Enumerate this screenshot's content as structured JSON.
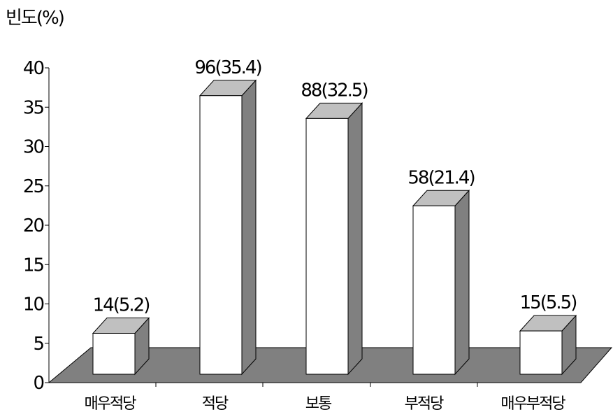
{
  "chart_data": {
    "type": "bar",
    "ylabel": "빈도(%)",
    "ylim": [
      0,
      40
    ],
    "yticks": [
      0,
      5,
      10,
      15,
      20,
      25,
      30,
      35,
      40
    ],
    "categories": [
      "매우적당",
      "적당",
      "보통",
      "부적당",
      "매우부적당"
    ],
    "values": [
      5.2,
      35.4,
      32.5,
      21.4,
      5.5
    ],
    "data_labels": [
      "14(5.2)",
      "96(35.4)",
      "88(32.5)",
      "58(21.4)",
      "15(5.5)"
    ],
    "style": "3d",
    "colors": {
      "front": "#ffffff",
      "top": "#c0c0c0",
      "side": "#808080",
      "floor": "#808080",
      "stroke": "#000000"
    }
  }
}
